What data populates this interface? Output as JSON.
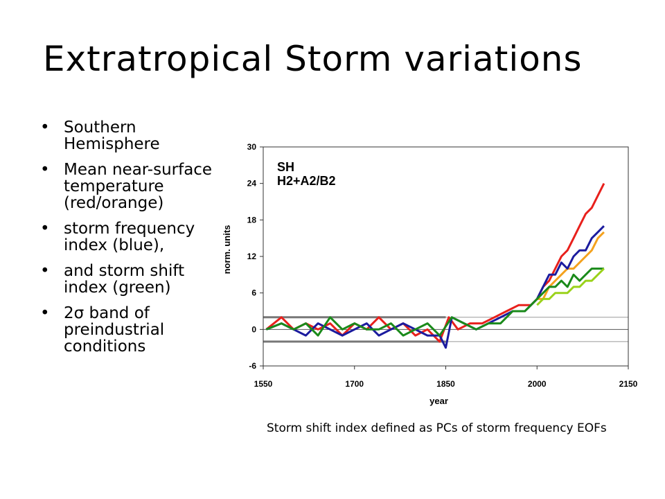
{
  "slide": {
    "title": "Extratropical Storm variations",
    "bullets": [
      {
        "dot": "•",
        "text": "Southern Hemisphere"
      },
      {
        "dot": "•",
        "text": "Mean near-surface temperature (red/orange)"
      },
      {
        "dot": "•",
        "text": "storm frequency index (blue),"
      },
      {
        "dot": "•",
        "text": " and storm shift index (green)"
      },
      {
        "dot": "•",
        "text": "2σ band of preindustrial conditions"
      }
    ],
    "caption": "Storm shift index defined as PCs of  storm frequency EOFs"
  },
  "chart_data": {
    "type": "line",
    "annotations": [
      "SH",
      "H2+A2/B2"
    ],
    "xlabel": "year",
    "ylabel": "norm. units",
    "xlim": [
      1550,
      2150
    ],
    "ylim": [
      -6,
      30
    ],
    "xticks": [
      1550,
      1700,
      1850,
      2000,
      2150
    ],
    "yticks": [
      -6,
      0,
      6,
      12,
      18,
      24,
      30
    ],
    "reference_lines": [
      -2,
      0,
      2
    ],
    "preindustrial_band_end": 1850,
    "series": [
      {
        "color": "#e8201c",
        "x": [
          1555,
          1580,
          1600,
          1620,
          1640,
          1660,
          1680,
          1700,
          1720,
          1740,
          1760,
          1780,
          1800,
          1820,
          1840,
          1855,
          1870,
          1890,
          1910,
          1930,
          1950,
          1970,
          1990,
          2000,
          2010,
          2020,
          2030,
          2040,
          2050,
          2060,
          2070,
          2080,
          2090,
          2100,
          2110
        ],
        "y": [
          0,
          2,
          0,
          1,
          0,
          1,
          -1,
          1,
          0,
          2,
          0,
          1,
          -1,
          0,
          -2,
          2,
          0,
          1,
          1,
          2,
          3,
          4,
          4,
          5,
          7,
          8,
          10,
          12,
          13,
          15,
          17,
          19,
          20,
          22,
          24
        ]
      },
      {
        "color": "#f4a21e",
        "x": [
          2000,
          2010,
          2020,
          2030,
          2040,
          2050,
          2060,
          2070,
          2080,
          2090,
          2100,
          2110
        ],
        "y": [
          5,
          5,
          7,
          8,
          9,
          10,
          10,
          11,
          12,
          13,
          15,
          16
        ]
      },
      {
        "color": "#1b1b9e",
        "x": [
          1555,
          1580,
          1600,
          1620,
          1640,
          1660,
          1680,
          1700,
          1720,
          1740,
          1760,
          1780,
          1800,
          1820,
          1840,
          1850,
          1860,
          1880,
          1900,
          1920,
          1940,
          1960,
          1980,
          2000,
          2010,
          2020,
          2030,
          2040,
          2050,
          2060,
          2070,
          2080,
          2090,
          2100,
          2110
        ],
        "y": [
          0,
          1,
          0,
          -1,
          1,
          0,
          -1,
          0,
          1,
          -1,
          0,
          1,
          0,
          -1,
          -1,
          -3,
          2,
          1,
          0,
          1,
          2,
          3,
          3,
          5,
          7,
          9,
          9,
          11,
          10,
          12,
          13,
          13,
          15,
          16,
          17
        ]
      },
      {
        "color": "#1a8a1a",
        "x": [
          1555,
          1580,
          1600,
          1620,
          1640,
          1660,
          1680,
          1700,
          1720,
          1740,
          1760,
          1780,
          1800,
          1820,
          1840,
          1860,
          1880,
          1900,
          1920,
          1940,
          1960,
          1980,
          2000,
          2010,
          2020,
          2030,
          2040,
          2050,
          2060,
          2070,
          2080,
          2090,
          2100,
          2110
        ],
        "y": [
          0,
          1,
          0,
          1,
          -1,
          2,
          0,
          1,
          0,
          0,
          1,
          -1,
          0,
          1,
          -1,
          2,
          1,
          0,
          1,
          1,
          3,
          3,
          5,
          6,
          7,
          7,
          8,
          7,
          9,
          8,
          9,
          10,
          10,
          10
        ]
      },
      {
        "color": "#9ad21a",
        "x": [
          2000,
          2010,
          2020,
          2030,
          2040,
          2050,
          2060,
          2070,
          2080,
          2090,
          2100,
          2110
        ],
        "y": [
          4,
          5,
          5,
          6,
          6,
          6,
          7,
          7,
          8,
          8,
          9,
          10
        ]
      }
    ]
  }
}
